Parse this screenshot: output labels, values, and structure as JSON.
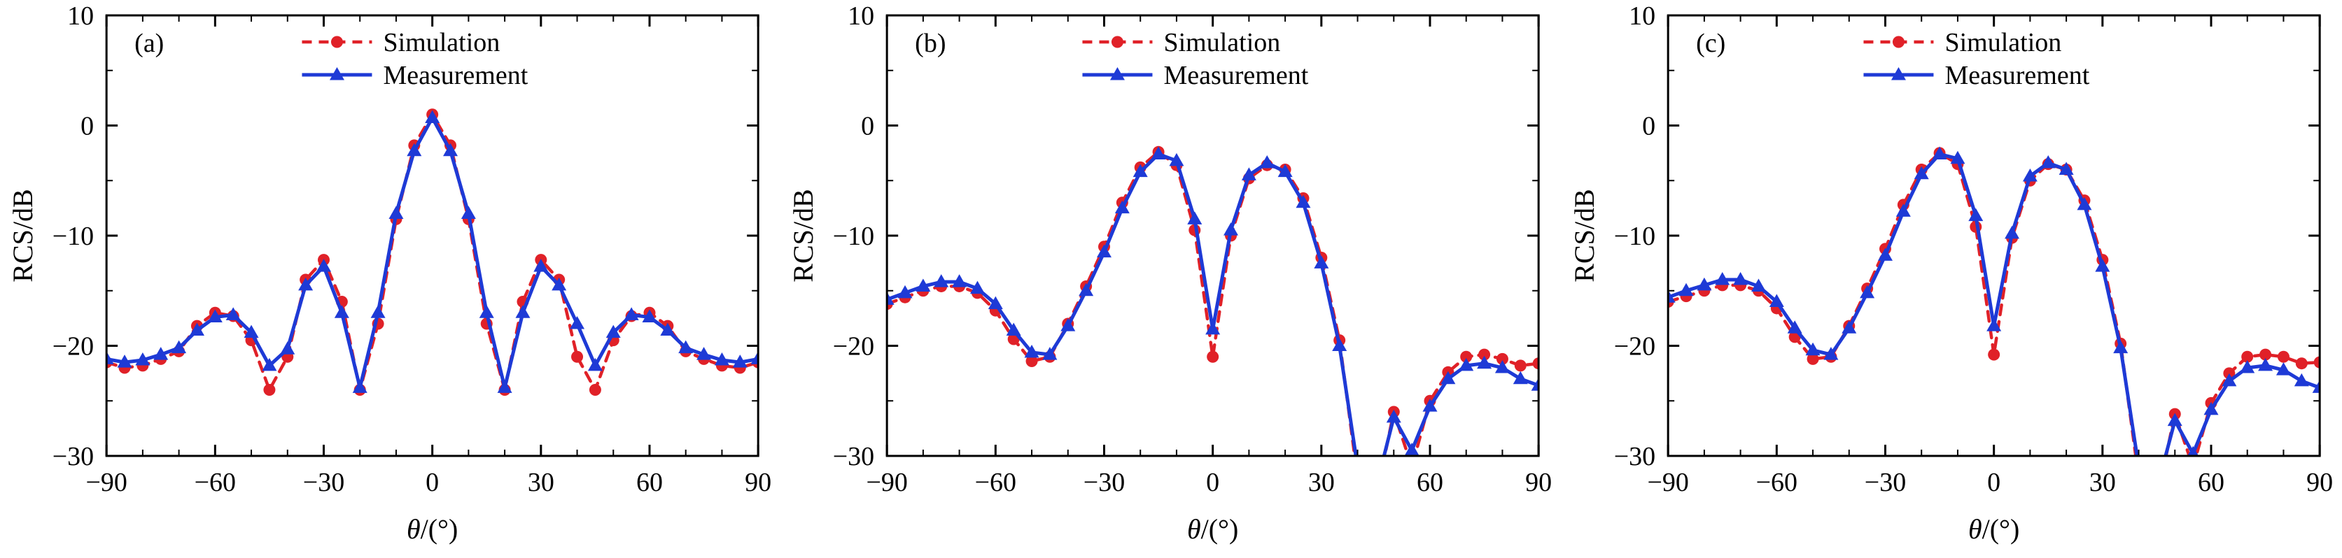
{
  "page": {
    "background": "#ffffff"
  },
  "colors": {
    "simulation": "#e02128",
    "measurement": "#1e3ad6",
    "axis": "#000000"
  },
  "chart_data": [
    {
      "type": "line",
      "panel_label": "(a)",
      "xlabel": "θ/(°)",
      "ylabel": "RCS/dB",
      "xlim": [
        -90,
        90
      ],
      "ylim": [
        -30,
        10
      ],
      "xticks": [
        -90,
        -60,
        -30,
        0,
        30,
        60,
        90
      ],
      "yticks": [
        -30,
        -20,
        -10,
        0,
        10
      ],
      "grid": false,
      "legend_position": "top-center",
      "x": [
        -90,
        -85,
        -80,
        -75,
        -70,
        -65,
        -60,
        -55,
        -50,
        -45,
        -40,
        -35,
        -30,
        -25,
        -20,
        -15,
        -10,
        -5,
        0,
        5,
        10,
        15,
        20,
        25,
        30,
        35,
        40,
        45,
        50,
        55,
        60,
        65,
        70,
        75,
        80,
        85,
        90
      ],
      "series": [
        {
          "name": "Simulation",
          "marker": "circle",
          "line": "dashed",
          "color": "#e02128",
          "values": [
            -21.5,
            -22,
            -21.8,
            -21.2,
            -20.5,
            -18.2,
            -17.0,
            -17.3,
            -19.5,
            -24,
            -21,
            -14,
            -12.2,
            -16,
            -24,
            -18,
            -8.5,
            -1.8,
            1.0,
            -1.8,
            -8.5,
            -18,
            -24,
            -16,
            -12.2,
            -14,
            -21,
            -24,
            -19.5,
            -17.3,
            -17.0,
            -18.2,
            -20.5,
            -21.2,
            -21.8,
            -22,
            -21.5
          ]
        },
        {
          "name": "Measurement",
          "marker": "triangle",
          "line": "solid",
          "color": "#1e3ad6",
          "values": [
            -21.2,
            -21.5,
            -21.3,
            -20.8,
            -20.2,
            -18.6,
            -17.4,
            -17.2,
            -18.8,
            -21.8,
            -20.3,
            -14.5,
            -12.8,
            -17,
            -23.8,
            -17,
            -8,
            -2.3,
            0.7,
            -2.3,
            -8,
            -17,
            -23.8,
            -17,
            -12.8,
            -14.5,
            -18,
            -21.8,
            -18.8,
            -17.2,
            -17.4,
            -18.6,
            -20.2,
            -20.8,
            -21.3,
            -21.5,
            -21.2
          ]
        }
      ]
    },
    {
      "type": "line",
      "panel_label": "(b)",
      "xlabel": "θ/(°)",
      "ylabel": "RCS/dB",
      "xlim": [
        -90,
        90
      ],
      "ylim": [
        -30,
        10
      ],
      "xticks": [
        -90,
        -60,
        -30,
        0,
        30,
        60,
        90
      ],
      "yticks": [
        -30,
        -20,
        -10,
        0,
        10
      ],
      "grid": false,
      "legend_position": "top-center",
      "x": [
        -90,
        -85,
        -80,
        -75,
        -70,
        -65,
        -60,
        -55,
        -50,
        -45,
        -40,
        -35,
        -30,
        -25,
        -20,
        -15,
        -10,
        -5,
        0,
        5,
        10,
        15,
        20,
        25,
        30,
        35,
        40,
        45,
        50,
        55,
        60,
        65,
        70,
        75,
        80,
        85,
        90
      ],
      "series": [
        {
          "name": "Simulation",
          "marker": "circle",
          "line": "dashed",
          "color": "#e02128",
          "values": [
            -16.2,
            -15.6,
            -15.0,
            -14.6,
            -14.6,
            -15.2,
            -16.8,
            -19.4,
            -21.4,
            -21.0,
            -18.0,
            -14.6,
            -11.0,
            -7.0,
            -3.8,
            -2.4,
            -3.6,
            -9.5,
            -21.0,
            -10.0,
            -4.8,
            -3.6,
            -4.0,
            -6.6,
            -12.0,
            -19.5,
            -32,
            -34,
            -26.0,
            -31.0,
            -25.0,
            -22.4,
            -21.0,
            -20.8,
            -21.2,
            -21.8,
            -21.6
          ]
        },
        {
          "name": "Measurement",
          "marker": "triangle",
          "line": "solid",
          "color": "#1e3ad6",
          "values": [
            -15.8,
            -15.2,
            -14.6,
            -14.2,
            -14.2,
            -14.8,
            -16.2,
            -18.6,
            -20.6,
            -20.8,
            -18.2,
            -15.0,
            -11.5,
            -7.5,
            -4.2,
            -2.6,
            -3.2,
            -8.5,
            -18.5,
            -9.5,
            -4.5,
            -3.4,
            -4.2,
            -7.0,
            -12.5,
            -20.0,
            -31,
            -33,
            -26.5,
            -29.5,
            -25.5,
            -23.0,
            -21.8,
            -21.6,
            -22.0,
            -23.0,
            -23.6
          ]
        }
      ]
    },
    {
      "type": "line",
      "panel_label": "(c)",
      "xlabel": "θ/(°)",
      "ylabel": "RCS/dB",
      "xlim": [
        -90,
        90
      ],
      "ylim": [
        -30,
        10
      ],
      "xticks": [
        -90,
        -60,
        -30,
        0,
        30,
        60,
        90
      ],
      "yticks": [
        -30,
        -20,
        -10,
        0,
        10
      ],
      "grid": false,
      "legend_position": "top-center",
      "x": [
        -90,
        -85,
        -80,
        -75,
        -70,
        -65,
        -60,
        -55,
        -50,
        -45,
        -40,
        -35,
        -30,
        -25,
        -20,
        -15,
        -10,
        -5,
        0,
        5,
        10,
        15,
        20,
        25,
        30,
        35,
        40,
        45,
        50,
        55,
        60,
        65,
        70,
        75,
        80,
        85,
        90
      ],
      "series": [
        {
          "name": "Simulation",
          "marker": "circle",
          "line": "dashed",
          "color": "#e02128",
          "values": [
            -16.0,
            -15.5,
            -15.0,
            -14.5,
            -14.5,
            -15.0,
            -16.6,
            -19.2,
            -21.2,
            -21.0,
            -18.2,
            -14.8,
            -11.2,
            -7.2,
            -4.0,
            -2.5,
            -3.5,
            -9.2,
            -20.8,
            -10.2,
            -5.0,
            -3.5,
            -4.0,
            -6.8,
            -12.2,
            -19.8,
            -32,
            -34,
            -26.2,
            -31.0,
            -25.2,
            -22.5,
            -21.0,
            -20.8,
            -21.0,
            -21.6,
            -21.5
          ]
        },
        {
          "name": "Measurement",
          "marker": "triangle",
          "line": "solid",
          "color": "#1e3ad6",
          "values": [
            -15.6,
            -15.0,
            -14.5,
            -14.0,
            -14.0,
            -14.6,
            -16.0,
            -18.4,
            -20.4,
            -20.8,
            -18.4,
            -15.2,
            -11.8,
            -7.8,
            -4.4,
            -2.6,
            -3.0,
            -8.2,
            -18.2,
            -9.8,
            -4.6,
            -3.4,
            -4.0,
            -7.2,
            -12.8,
            -20.2,
            -31,
            -33,
            -26.8,
            -29.8,
            -25.8,
            -23.2,
            -22.0,
            -21.8,
            -22.2,
            -23.2,
            -23.8
          ]
        }
      ]
    }
  ]
}
